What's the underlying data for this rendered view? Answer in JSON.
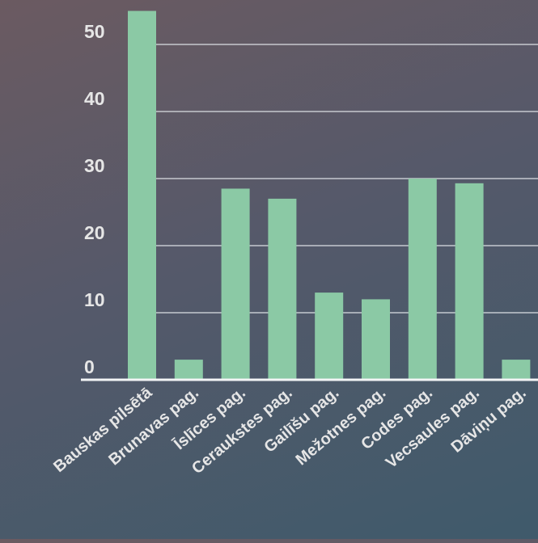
{
  "chart_data": {
    "type": "bar",
    "categories": [
      "Bauskas pilsētā",
      "Brunavas pag.",
      "Īslīces pag.",
      "Ceraukstes pag.",
      "Gailīšu pag.",
      "Mežotnes pag.",
      "Codes pag.",
      "Vecsaules pag.",
      "Dāviņu pag."
    ],
    "values": [
      55,
      3,
      28.5,
      27,
      13,
      12,
      30,
      29.3,
      3
    ],
    "yticks": [
      "0",
      "10",
      "20",
      "30",
      "40",
      "50"
    ],
    "ylim": [
      0,
      55
    ],
    "grid": true,
    "colors": {
      "bar": "#8bc9a5",
      "grid": "#d9dde2",
      "axis": "#f2f4f5",
      "label": "#e6e6e6"
    }
  }
}
